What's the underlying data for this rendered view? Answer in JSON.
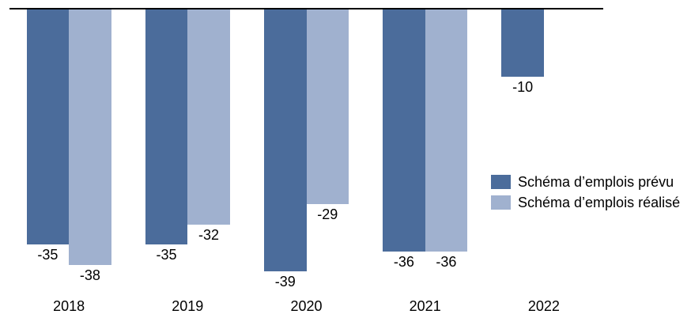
{
  "chart_data": {
    "type": "bar",
    "categories": [
      "2018",
      "2019",
      "2020",
      "2021",
      "2022"
    ],
    "series": [
      {
        "key": "prevu",
        "name": "Schéma d’emplois prévu",
        "color": "#4b6c9b",
        "values": [
          -35,
          -35,
          -39,
          -36,
          -10
        ]
      },
      {
        "key": "realise",
        "name": "Schéma d’emplois réalisé",
        "color": "#a0b1cf",
        "values": [
          -38,
          -32,
          -29,
          -36,
          null
        ]
      }
    ],
    "title": "",
    "xlabel": "",
    "ylabel": "",
    "ylim": [
      -40,
      0
    ],
    "grid": false,
    "zero_line_color": "#000000",
    "value_labels": true,
    "value_label_position": "below-bar",
    "legend_position": "center-right",
    "background_color": "#ffffff"
  }
}
